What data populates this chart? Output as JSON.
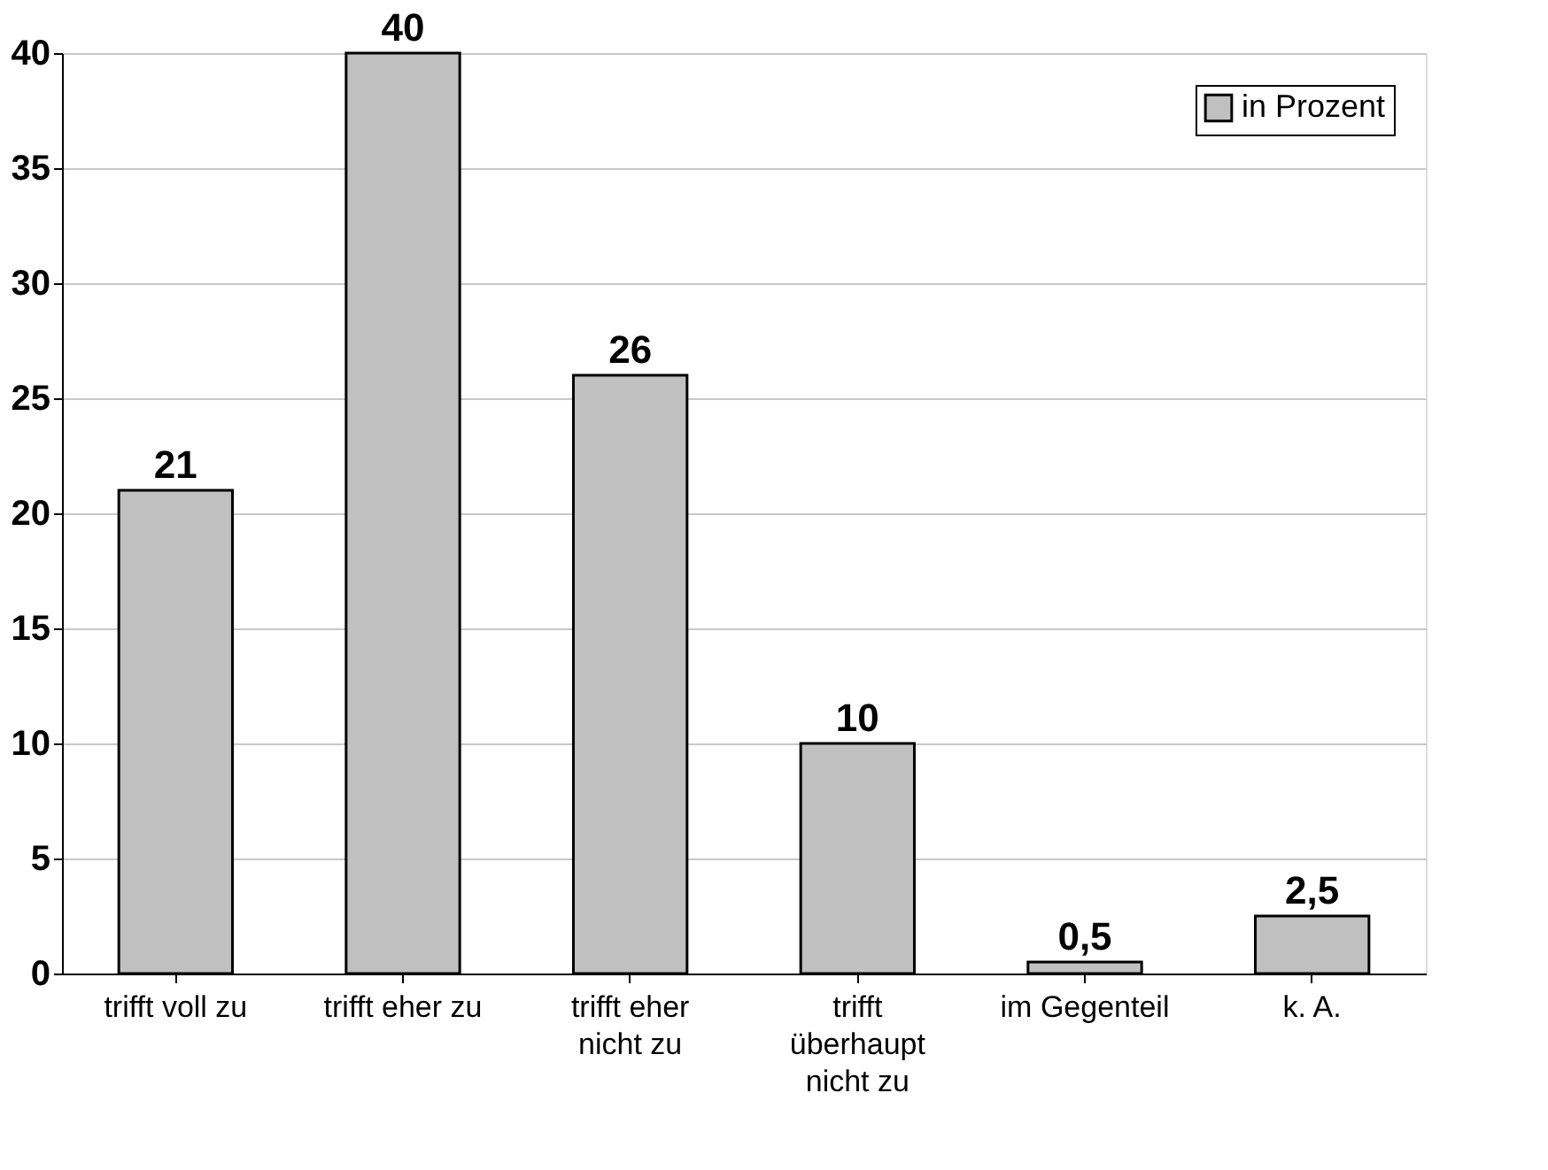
{
  "chart_data": {
    "type": "bar",
    "categories": [
      "trifft voll zu",
      "trifft eher zu",
      "trifft eher nicht zu",
      "trifft überhaupt nicht zu",
      "im Gegenteil",
      "k. A."
    ],
    "series": [
      {
        "name": "in Prozent",
        "color": "#c0c0c0",
        "values": [
          21,
          40,
          26,
          10,
          0.5,
          2.5
        ],
        "value_labels": [
          "21",
          "40",
          "26",
          "10",
          "0,5",
          "2,5"
        ]
      }
    ],
    "ylim": [
      0,
      40
    ],
    "yticks": [
      0,
      5,
      10,
      15,
      20,
      25,
      30,
      35,
      40
    ],
    "grid": "y",
    "legend": "top right"
  }
}
